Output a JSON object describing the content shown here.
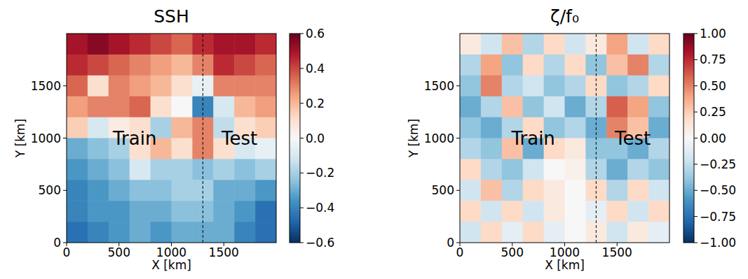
{
  "chart_data": [
    {
      "type": "heatmap",
      "title": "SSH",
      "x_label": "X [km]",
      "y_label": "Y [km]",
      "xlim": [
        0,
        2000
      ],
      "ylim": [
        0,
        2000
      ],
      "xticks": [
        0,
        500,
        1000,
        1500
      ],
      "yticks": [
        0,
        500,
        1000,
        1500
      ],
      "split_x": 1300,
      "annotations": [
        {
          "text": "Train",
          "x": 650,
          "y": 1000
        },
        {
          "text": "Test",
          "x": 1650,
          "y": 1000
        }
      ],
      "cells": [
        [
          0.5,
          0.55,
          0.5,
          0.45,
          0.4,
          0.35,
          0.45,
          0.5,
          0.5,
          0.45
        ],
        [
          0.45,
          0.4,
          0.35,
          0.3,
          0.25,
          0.2,
          0.3,
          0.45,
          0.4,
          0.35
        ],
        [
          0.35,
          0.1,
          0.3,
          0.25,
          0.2,
          0.1,
          -0.05,
          0.3,
          0.3,
          0.3
        ],
        [
          0.25,
          0.3,
          0.3,
          0.35,
          0.1,
          0.0,
          -0.4,
          -0.1,
          0.2,
          0.25
        ],
        [
          0.15,
          -0.1,
          0.05,
          0.1,
          -0.2,
          0.2,
          0.3,
          -0.15,
          0.1,
          0.15
        ],
        [
          -0.3,
          -0.25,
          -0.2,
          0.1,
          0.2,
          0.1,
          0.3,
          0.1,
          -0.1,
          -0.05
        ],
        [
          -0.35,
          -0.3,
          -0.25,
          -0.1,
          -0.2,
          -0.2,
          -0.25,
          -0.2,
          -0.25,
          -0.2
        ],
        [
          -0.4,
          -0.35,
          -0.3,
          -0.25,
          -0.25,
          -0.2,
          -0.2,
          -0.3,
          -0.3,
          -0.35
        ],
        [
          -0.4,
          -0.35,
          -0.35,
          -0.3,
          -0.3,
          -0.25,
          -0.25,
          -0.3,
          -0.35,
          -0.45
        ],
        [
          -0.45,
          -0.4,
          -0.35,
          -0.3,
          -0.35,
          -0.3,
          -0.3,
          -0.3,
          -0.4,
          -0.45
        ]
      ],
      "color_range": [
        -0.6,
        0.6
      ],
      "color_ticks": [
        {
          "value": -0.6,
          "label": "−0.6"
        },
        {
          "value": -0.4,
          "label": "−0.4"
        },
        {
          "value": -0.2,
          "label": "−0.2"
        },
        {
          "value": 0,
          "label": "0.0"
        },
        0.2,
        0.4,
        0.6
      ]
    },
    {
      "type": "heatmap",
      "title": "ζ/f₀",
      "x_label": "X [km]",
      "y_label": "Y [km]",
      "xlim": [
        0,
        2000
      ],
      "ylim": [
        0,
        2000
      ],
      "xticks": [
        0,
        500,
        1000,
        1500
      ],
      "yticks": [
        0,
        500,
        1000,
        1500
      ],
      "split_x": 1300,
      "annotations": [
        {
          "text": "Train",
          "x": 700,
          "y": 1000
        },
        {
          "text": "Test",
          "x": 1650,
          "y": 1000
        }
      ],
      "cells": [
        [
          0.1,
          -0.2,
          0.3,
          -0.3,
          0.2,
          -0.2,
          0.1,
          0.4,
          -0.2,
          0.2
        ],
        [
          -0.3,
          0.4,
          -0.4,
          0.2,
          -0.3,
          0.2,
          -0.4,
          0.3,
          0.5,
          -0.3
        ],
        [
          -0.4,
          0.5,
          -0.3,
          -0.2,
          -0.4,
          -0.3,
          0.2,
          -0.4,
          -0.3,
          0.2
        ],
        [
          -0.5,
          -0.3,
          0.3,
          -0.4,
          -0.2,
          -0.5,
          -0.3,
          0.6,
          0.4,
          -0.4
        ],
        [
          -0.4,
          -0.5,
          -0.3,
          0.2,
          -0.4,
          -0.3,
          -0.5,
          0.5,
          0.3,
          -0.5
        ],
        [
          -0.3,
          -0.4,
          0.3,
          -0.5,
          0.2,
          0.1,
          -0.4,
          -0.4,
          -0.5,
          -0.3
        ],
        [
          0.2,
          -0.3,
          -0.4,
          -0.2,
          0.0,
          0.05,
          -0.3,
          -0.5,
          -0.3,
          -0.4
        ],
        [
          -0.2,
          0.3,
          -0.3,
          0.2,
          0.1,
          0.0,
          0.2,
          -0.3,
          0.2,
          -0.2
        ],
        [
          0.2,
          -0.2,
          0.2,
          -0.2,
          0.1,
          0.0,
          -0.1,
          0.2,
          -0.2,
          0.2
        ],
        [
          -0.2,
          0.2,
          -0.1,
          0.2,
          -0.1,
          0.0,
          0.1,
          -0.2,
          0.1,
          -0.1
        ]
      ],
      "color_range": [
        -1,
        1
      ],
      "color_ticks": [
        {
          "value": -1,
          "label": "−1.00"
        },
        {
          "value": -0.75,
          "label": "−0.75"
        },
        {
          "value": -0.5,
          "label": "−0.50"
        },
        {
          "value": -0.25,
          "label": "−0.25"
        },
        {
          "value": 0,
          "label": "0.00"
        },
        {
          "value": 0.25,
          "label": "0.25"
        },
        {
          "value": 0.5,
          "label": "0.50"
        },
        {
          "value": 0.75,
          "label": "0.75"
        },
        {
          "value": 1,
          "label": "1.00"
        }
      ]
    }
  ]
}
